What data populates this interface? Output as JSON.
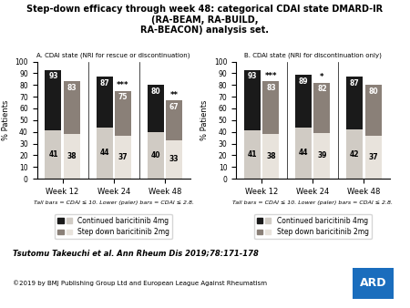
{
  "title": "Step-down efficacy through week 48: categorical CDAI state DMARD-IR (RA-BEAM, RA-BUILD,\nRA-BEACON) analysis set.",
  "annotations": [
    "Tsutomu Takeuchi et al. Ann Rheum Dis 2019;78:171-178",
    "©2019 by BMJ Publishing Group Ltd and European League Against Rheumatism",
    "ARD"
  ],
  "chart_data": [
    {
      "type": "bar",
      "title": "A. CDAI state (NRI for rescue or discontinuation)",
      "ylabel": "% Patients",
      "xlabel": "Tall bars = CDAI ≤ 10. Lower (paler) bars = CDAI ≤ 2.8.",
      "categories": [
        "Week 12",
        "Week 24",
        "Week 48"
      ],
      "series": [
        {
          "name": "Continued baricitinib 4mg",
          "color": "#1a1a1a",
          "values": [
            93,
            87,
            80
          ]
        },
        {
          "color": "#d0cbc4",
          "values": [
            41,
            44,
            40
          ]
        },
        {
          "name": "Step down baricitinib 2mg",
          "color": "#8a8078",
          "values": [
            83,
            75,
            67
          ]
        },
        {
          "color": "#e8e3dc",
          "values": [
            38,
            37,
            33
          ]
        }
      ],
      "annotations": [
        {
          "category": "Week 24",
          "series": "Step down baricitinib 2mg",
          "text": "***"
        },
        {
          "category": "Week 48",
          "series": "Step down baricitinib 2mg",
          "text": "**"
        }
      ],
      "ylim": [
        0,
        100
      ],
      "yticks": [
        0,
        10,
        20,
        30,
        40,
        50,
        60,
        70,
        80,
        90,
        100
      ],
      "data_labels": true,
      "legend": "upper center"
    },
    {
      "type": "bar",
      "title": "B. CDAI state (NRI for discontinuation only)",
      "ylabel": "% Patients",
      "xlabel": "Tall bars = CDAI ≤ 10. Lower (paler) bars = CDAI ≤ 2.8.",
      "categories": [
        "Week 12",
        "Week 24",
        "Week 48"
      ],
      "series": [
        {
          "name": "Continued baricitinib 4mg",
          "color": "#1a1a1a",
          "values": [
            93,
            89,
            87
          ]
        },
        {
          "color": "#d0cbc4",
          "values": [
            41,
            44,
            42
          ]
        },
        {
          "name": "Step down baricitinib 2mg",
          "color": "#8a8078",
          "values": [
            83,
            82,
            80
          ]
        },
        {
          "color": "#e8e3dc",
          "values": [
            38,
            39,
            37
          ]
        }
      ],
      "annotations": [
        {
          "category": "Week 12",
          "series": "Step down baricitinib 2mg",
          "text": "***"
        },
        {
          "category": "Week 24",
          "series": "Step down baricitinib 2mg",
          "text": "*"
        }
      ],
      "ylim": [
        0,
        100
      ],
      "yticks": [
        0,
        10,
        20,
        30,
        40,
        50,
        60,
        70,
        80,
        90,
        100
      ],
      "data_labels": true,
      "legend": "upper center"
    }
  ]
}
